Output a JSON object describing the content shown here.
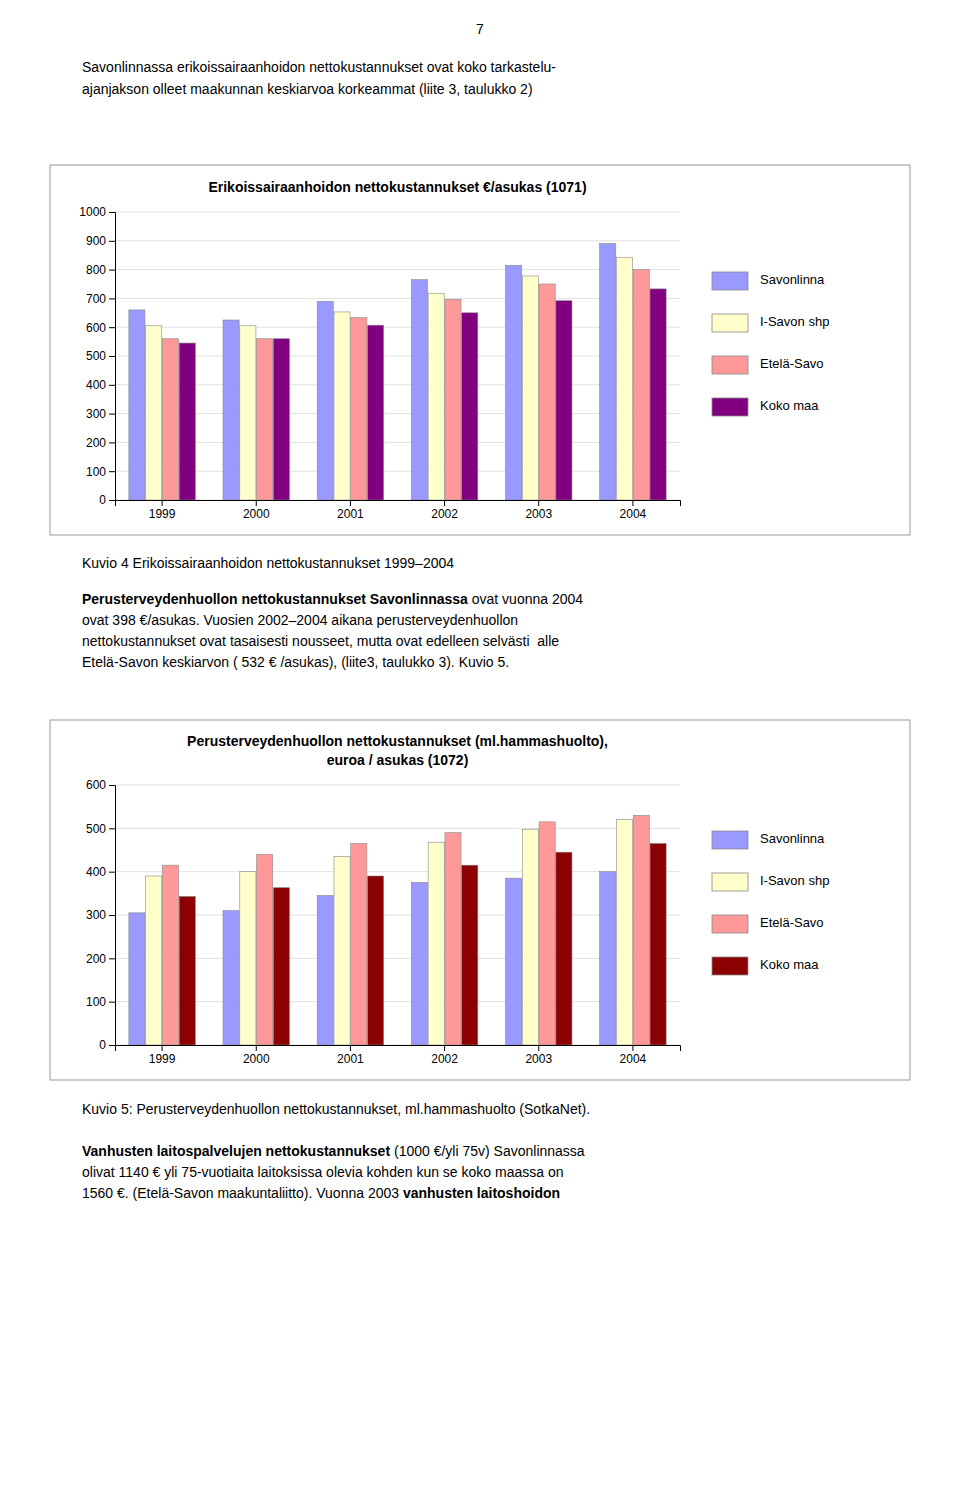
{
  "page_number": "7",
  "intro": [
    "Savonlinnassa erikoissairaanhoidon nettokustannukset ovat koko tarkastelu-",
    "ajanjakson olleet maakunnan keskiarvoa korkeammat (liite 3, taulukko 2)"
  ],
  "chart_data": [
    {
      "type": "bar",
      "title": "Erikoissairaanhoidon nettokustannukset €/asukas (1071)",
      "categories": [
        "1999",
        "2000",
        "2001",
        "2002",
        "2003",
        "2004"
      ],
      "series": [
        {
          "name": "Savonlinna",
          "color": "#9999FF",
          "values": [
            660,
            625,
            690,
            765,
            815,
            890
          ]
        },
        {
          "name": "I-Savon shp",
          "color": "#FFFFCC",
          "values": [
            605,
            605,
            653,
            718,
            778,
            843
          ]
        },
        {
          "name": "Etelä-Savo",
          "color": "#FF9999",
          "values": [
            560,
            560,
            633,
            697,
            750,
            800
          ]
        },
        {
          "name": "Koko maa",
          "color": "#800080",
          "values": [
            545,
            560,
            607,
            650,
            692,
            733
          ]
        }
      ],
      "ylim": [
        0,
        1000
      ],
      "yticks": [
        0,
        100,
        200,
        300,
        400,
        500,
        600,
        700,
        800,
        900,
        1000
      ],
      "grid": true,
      "legend": "right"
    },
    {
      "type": "bar",
      "title": "Perusterveydenhuollon nettokustannukset (ml.hammashuolto),",
      "subtitle": "euroa / asukas (1072)",
      "categories": [
        "1999",
        "2000",
        "2001",
        "2002",
        "2003",
        "2004"
      ],
      "series": [
        {
          "name": "Savonlinna",
          "color": "#9999FF",
          "values": [
            305,
            310,
            345,
            375,
            385,
            400
          ]
        },
        {
          "name": "I-Savon shp",
          "color": "#FFFFCC",
          "values": [
            390,
            400,
            435,
            468,
            498,
            520
          ]
        },
        {
          "name": "Etelä-Savo",
          "color": "#FF9999",
          "values": [
            415,
            440,
            465,
            490,
            515,
            530
          ]
        },
        {
          "name": "Koko maa",
          "color": "#8B0000",
          "values": [
            343,
            363,
            390,
            415,
            445,
            465
          ]
        }
      ],
      "ylim": [
        0,
        600
      ],
      "yticks": [
        0,
        100,
        200,
        300,
        400,
        500,
        600
      ],
      "grid": true,
      "legend": "right"
    }
  ],
  "captions": [
    "Kuvio 4 Erikoissairaanhoidon nettokustannukset 1999–2004",
    "Kuvio 5: Perusterveydenhuollon nettokustannukset, ml.hammashuolto (SotkaNet)."
  ],
  "mid_text": [
    [
      {
        "text": "Perusterveydenhuollon nettokustannukset Savonlinnassa",
        "bold": true
      },
      {
        "text": " ovat vuonna 2004"
      }
    ],
    [
      {
        "text": "ovat 398 €/asukas. Vuosien 2002–2004 aikana perusterveydenhuollon"
      }
    ],
    [
      {
        "text": "nettokustannukset ovat tasaisesti nousseet, mutta ovat edelleen selvästi  alle"
      }
    ],
    [
      {
        "text": "Etelä-Savon keskiarvon ( 532 € /asukas), (liite3, taulukko 3). Kuvio 5."
      }
    ]
  ],
  "bottom_text": [
    [
      {
        "text": "Vanhusten laitospalvelujen nettokustannukset",
        "bold": true
      },
      {
        "text": " (1000 €/yli 75v) Savonlinnassa"
      }
    ],
    [
      {
        "text": "olivat 1140 € yli 75-vuotiaita laitoksissa olevia kohden kun se koko maassa on"
      }
    ],
    [
      {
        "text": "1560 €. (Etelä-Savon maakuntaliitto). Vuonna 2003 "
      },
      {
        "text": "vanhusten laitoshoidon",
        "bold": true
      }
    ]
  ]
}
